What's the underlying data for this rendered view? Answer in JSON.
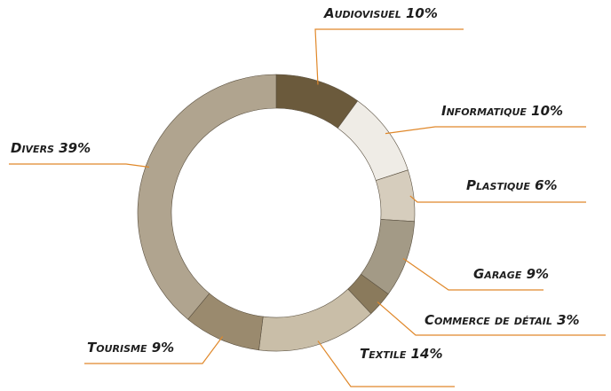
{
  "chart_data": {
    "type": "donut",
    "categories": [
      "Audiovisuel",
      "Informatique",
      "Plastique",
      "Garage",
      "Commerce de détail",
      "Textile",
      "Tourisme",
      "Divers"
    ],
    "values": [
      10,
      10,
      6,
      9,
      3,
      14,
      9,
      39
    ],
    "value_labels": [
      "10%",
      "10%",
      "6%",
      "9%",
      "3%",
      "14%",
      "9%",
      "39%"
    ],
    "colors": [
      "#6b5a3c",
      "#efece6",
      "#d6cdbd",
      "#a39a86",
      "#8a7a5c",
      "#c9bea8",
      "#9a8a6e",
      "#b0a48f"
    ]
  }
}
